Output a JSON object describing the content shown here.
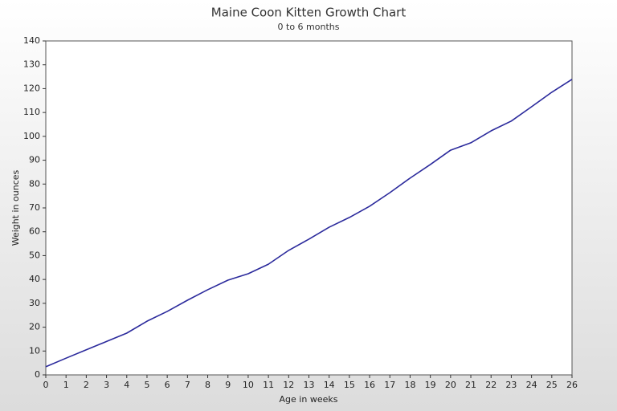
{
  "chart_data": {
    "type": "line",
    "title": "Maine Coon Kitten Growth Chart",
    "subtitle": "0 to 6 months",
    "x_label": "Age in weeks",
    "y_label": "Weight in ounces",
    "x": [
      0,
      1,
      2,
      3,
      4,
      5,
      6,
      7,
      8,
      9,
      10,
      11,
      12,
      13,
      14,
      15,
      16,
      17,
      18,
      19,
      20,
      21,
      22,
      23,
      24,
      25,
      26
    ],
    "series": [
      {
        "name": "Weight",
        "color": "#2b2a9c",
        "values": [
          3.4,
          7,
          10.5,
          14,
          17.5,
          22.5,
          26.6,
          31.3,
          35.7,
          39.7,
          42.4,
          46.4,
          52.2,
          56.9,
          61.9,
          66,
          70.7,
          76.4,
          82.5,
          88.2,
          94.2,
          97.3,
          102.3,
          106.4,
          112.4,
          118.5,
          123.9
        ]
      }
    ],
    "xlim": [
      0,
      26
    ],
    "xticks": [
      0,
      1,
      2,
      3,
      4,
      5,
      6,
      7,
      8,
      9,
      10,
      11,
      12,
      13,
      14,
      15,
      16,
      17,
      18,
      19,
      20,
      21,
      22,
      23,
      24,
      25,
      26
    ],
    "ylim": [
      0,
      140
    ],
    "yticks": [
      0,
      10,
      20,
      30,
      40,
      50,
      60,
      70,
      80,
      90,
      100,
      110,
      120,
      130,
      140
    ],
    "grid": false
  }
}
